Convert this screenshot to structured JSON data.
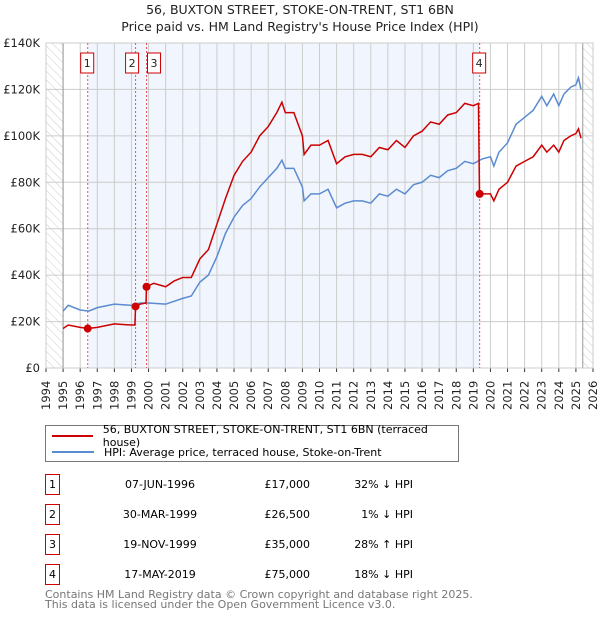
{
  "chart_data": {
    "type": "line",
    "title": "56, BUXTON STREET, STOKE-ON-TRENT, ST1 6BN",
    "subtitle": "Price paid vs. HM Land Registry's House Price Index (HPI)",
    "xlim": [
      1994,
      2026
    ],
    "ylim": [
      0,
      140000
    ],
    "yticks": [
      {
        "v": 0,
        "label": "£0"
      },
      {
        "v": 20000,
        "label": "£20K"
      },
      {
        "v": 40000,
        "label": "£40K"
      },
      {
        "v": 60000,
        "label": "£60K"
      },
      {
        "v": 80000,
        "label": "£80K"
      },
      {
        "v": 100000,
        "label": "£100K"
      },
      {
        "v": 120000,
        "label": "£120K"
      },
      {
        "v": 140000,
        "label": "£140K"
      }
    ],
    "xticks": [
      "1994",
      "1995",
      "1996",
      "1997",
      "1998",
      "1999",
      "2000",
      "2001",
      "2002",
      "2003",
      "2004",
      "2005",
      "2006",
      "2007",
      "2008",
      "2009",
      "2010",
      "2011",
      "2012",
      "2013",
      "2014",
      "2015",
      "2016",
      "2017",
      "2018",
      "2019",
      "2020",
      "2021",
      "2022",
      "2023",
      "2024",
      "2025",
      "2026"
    ],
    "grid": true,
    "series": [
      {
        "name": "56, BUXTON STREET, STOKE-ON-TRENT, ST1 6BN (terraced house)",
        "color": "#cc0000",
        "x": [
          1995,
          1995.3,
          1996,
          1996.44,
          1997,
          1998,
          1999,
          1999.2,
          1999.24,
          1999.5,
          1999.85,
          1999.88,
          2000.3,
          2001,
          2001.5,
          2002,
          2002.5,
          2003,
          2003.5,
          2004,
          2004.5,
          2005,
          2005.5,
          2006,
          2006.5,
          2007,
          2007.5,
          2007.8,
          2008,
          2008.5,
          2009,
          2009.1,
          2009.5,
          2010,
          2010.5,
          2011,
          2011.5,
          2012,
          2012.5,
          2013,
          2013.5,
          2014,
          2014.5,
          2015,
          2015.5,
          2016,
          2016.5,
          2017,
          2017.5,
          2018,
          2018.5,
          2019,
          2019.3,
          2019.36,
          2019.6,
          2020,
          2020.2,
          2020.5,
          2021,
          2021.5,
          2022,
          2022.5,
          2023,
          2023.3,
          2023.7,
          2024,
          2024.3,
          2024.7,
          2025,
          2025.15,
          2025.3
        ],
        "y": [
          17000,
          18500,
          17500,
          17000,
          17500,
          19000,
          18500,
          18500,
          26500,
          27500,
          28000,
          35000,
          36500,
          35000,
          37500,
          39000,
          39000,
          47000,
          51000,
          62000,
          73000,
          83000,
          89000,
          93000,
          100000,
          104000,
          110000,
          114500,
          110000,
          110000,
          100000,
          92000,
          96000,
          96000,
          98000,
          88000,
          91000,
          92000,
          92000,
          91000,
          95000,
          94000,
          98000,
          95000,
          100000,
          102000,
          106000,
          105000,
          109000,
          110000,
          114000,
          113000,
          114000,
          75000,
          75000,
          75000,
          72000,
          77000,
          80000,
          87000,
          89000,
          91000,
          96000,
          93000,
          96000,
          93000,
          98000,
          100000,
          101000,
          103000,
          99000
        ]
      },
      {
        "name": "HPI: Average price, terraced house, Stoke-on-Trent",
        "color": "#5b8bd0",
        "x": [
          1995,
          1995.3,
          1996,
          1996.5,
          1997,
          1998,
          1999,
          1999.5,
          2000,
          2001,
          2002,
          2002.5,
          2003,
          2003.5,
          2004,
          2004.5,
          2005,
          2005.5,
          2006,
          2006.5,
          2007,
          2007.5,
          2007.8,
          2008,
          2008.5,
          2009,
          2009.1,
          2009.5,
          2010,
          2010.5,
          2011,
          2011.5,
          2012,
          2012.5,
          2013,
          2013.5,
          2014,
          2014.5,
          2015,
          2015.5,
          2016,
          2016.5,
          2017,
          2017.5,
          2018,
          2018.5,
          2019,
          2019.5,
          2020,
          2020.2,
          2020.5,
          2021,
          2021.5,
          2022,
          2022.5,
          2023,
          2023.3,
          2023.7,
          2024,
          2024.3,
          2024.7,
          2025,
          2025.15,
          2025.3
        ],
        "y": [
          24500,
          27000,
          25000,
          24500,
          26000,
          27500,
          27000,
          28000,
          28000,
          27500,
          30000,
          31000,
          37000,
          40000,
          48000,
          58000,
          65000,
          70000,
          73000,
          78000,
          82000,
          86000,
          89500,
          86000,
          86000,
          78000,
          72000,
          75000,
          75000,
          77000,
          69000,
          71000,
          72000,
          72000,
          71000,
          75000,
          74000,
          77000,
          75000,
          79000,
          80000,
          83000,
          82000,
          85000,
          86000,
          89000,
          88000,
          90000,
          91000,
          87000,
          93000,
          97000,
          105000,
          108000,
          111000,
          117000,
          113000,
          118000,
          113000,
          118000,
          121000,
          122000,
          125000,
          120000
        ]
      }
    ],
    "sales": [
      {
        "n": "1",
        "x": 1996.44,
        "y": 17000,
        "date": "07-JUN-1996",
        "price": "£17,000",
        "hpi": "32% ↓ HPI"
      },
      {
        "n": "2",
        "x": 1999.24,
        "y": 26500,
        "date": "30-MAR-1999",
        "price": "£26,500",
        "hpi": "1% ↓ HPI"
      },
      {
        "n": "3",
        "x": 1999.88,
        "y": 35000,
        "date": "19-NOV-1999",
        "price": "£35,000",
        "hpi": "28% ↑ HPI"
      },
      {
        "n": "4",
        "x": 2019.37,
        "y": 75000,
        "date": "17-MAY-2019",
        "price": "£75,000",
        "hpi": "18% ↓ HPI"
      }
    ],
    "shaded_range": [
      1996.44,
      2019.37
    ],
    "hatched_before": 1995,
    "hatched_after": 2025.4
  },
  "footer": [
    "Contains HM Land Registry data © Crown copyright and database right 2025.",
    "This data is licensed under the Open Government Licence v3.0."
  ]
}
